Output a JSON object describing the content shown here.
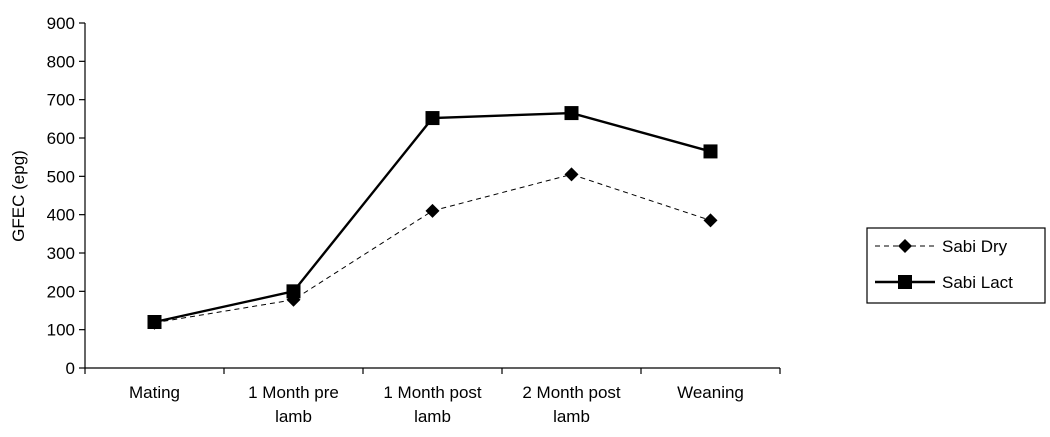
{
  "chart_data": {
    "type": "line",
    "title": "",
    "xlabel": "",
    "ylabel": "GFEC (epg)",
    "ylim": [
      0,
      900
    ],
    "y_ticks": [
      0,
      100,
      200,
      300,
      400,
      500,
      600,
      700,
      800,
      900
    ],
    "categories": [
      [
        "Mating"
      ],
      [
        "1 Month pre",
        "lamb"
      ],
      [
        "1 Month post",
        "lamb"
      ],
      [
        "2 Month post",
        "lamb"
      ],
      [
        "Weaning"
      ]
    ],
    "grid": false,
    "legend_position": "right",
    "series": [
      {
        "name": "Sabi Dry",
        "values": [
          118,
          178,
          410,
          505,
          385
        ],
        "marker": "diamond",
        "line_style": "dashed",
        "color": "#000000"
      },
      {
        "name": "Sabi Lact",
        "values": [
          120,
          200,
          652,
          665,
          565
        ],
        "marker": "square",
        "line_style": "solid",
        "color": "#000000"
      }
    ]
  }
}
